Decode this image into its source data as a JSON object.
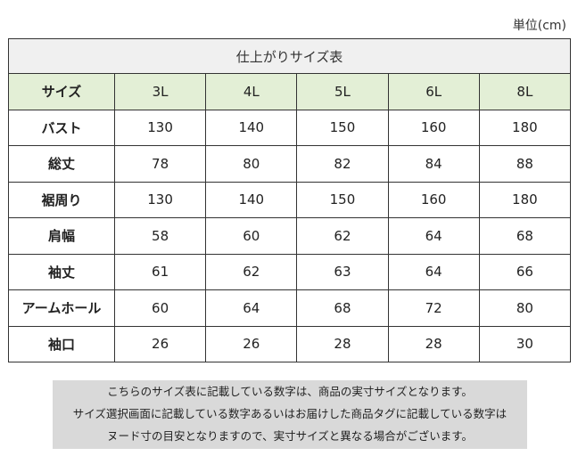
{
  "unit": "単位(cm)",
  "table": {
    "title": "仕上がりサイズ表",
    "header_label": "サイズ",
    "sizes": [
      "3L",
      "4L",
      "5L",
      "6L",
      "8L"
    ],
    "rows": [
      {
        "label": "バスト",
        "values": [
          "130",
          "140",
          "150",
          "160",
          "180"
        ]
      },
      {
        "label": "総丈",
        "values": [
          "78",
          "80",
          "82",
          "84",
          "88"
        ]
      },
      {
        "label": "裾周り",
        "values": [
          "130",
          "140",
          "150",
          "160",
          "180"
        ]
      },
      {
        "label": "肩幅",
        "values": [
          "58",
          "60",
          "62",
          "64",
          "68"
        ]
      },
      {
        "label": "袖丈",
        "values": [
          "61",
          "62",
          "63",
          "64",
          "66"
        ]
      },
      {
        "label": "アームホール",
        "values": [
          "60",
          "64",
          "68",
          "72",
          "80"
        ]
      },
      {
        "label": "袖口",
        "values": [
          "26",
          "26",
          "28",
          "28",
          "30"
        ]
      }
    ]
  },
  "note": {
    "lines": [
      "こちらのサイズ表に記載している数字は、商品の実寸サイズとなります。",
      "サイズ選択画面に記載している数字あるいはお届けした商品タグに記載している数字は",
      "ヌード寸の目安となりますので、実寸サイズと異なる場合がございます。"
    ]
  }
}
